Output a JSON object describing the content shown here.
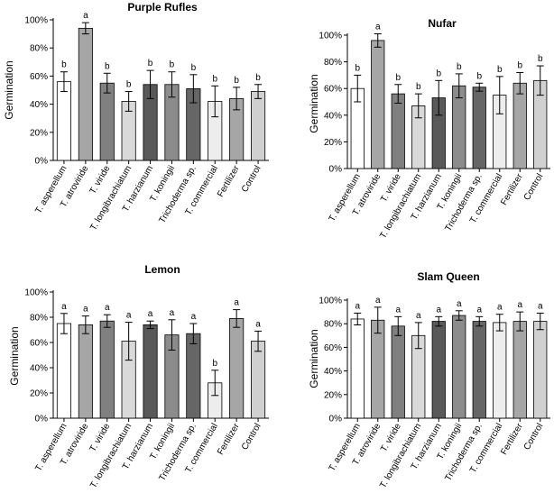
{
  "chart_data": [
    {
      "type": "bar",
      "title": "Purple Rufles",
      "ylabel": "Germination",
      "xlabel": "",
      "ylim": [
        0,
        100
      ],
      "yticks": [
        "0%",
        "20%",
        "40%",
        "60%",
        "80%",
        "100%"
      ],
      "categories": [
        "T. asperellum",
        "T. atroviride",
        "T. viride",
        "T. longibrachiatum",
        "T. harzianum",
        "T. koningii",
        "Trichoderma sp.",
        "T. commercial",
        "Fertilizer",
        "Control"
      ],
      "values": [
        56,
        94,
        55,
        42,
        54,
        54,
        51,
        42,
        44,
        49
      ],
      "errors": [
        7,
        4,
        7,
        7,
        10,
        9,
        10,
        11,
        8,
        5
      ],
      "letters": [
        "b",
        "a",
        "b",
        "b",
        "b",
        "b",
        "b",
        "b",
        "b",
        "b"
      ]
    },
    {
      "type": "bar",
      "title": "Nufar",
      "ylabel": "Germination",
      "xlabel": "",
      "ylim": [
        0,
        100
      ],
      "yticks": [
        "0%",
        "20%",
        "40%",
        "60%",
        "80%",
        "100%"
      ],
      "categories": [
        "T. asperellum",
        "T. atroviride",
        "T. viride",
        "T. longibrachiatum",
        "T. harzianum",
        "T. koningii",
        "Trichoderma sp.",
        "T. commercial",
        "Fertilizer",
        "Control"
      ],
      "values": [
        60,
        96,
        56,
        47,
        53,
        62,
        61,
        55,
        64,
        66
      ],
      "errors": [
        10,
        5,
        7,
        9,
        13,
        9,
        3,
        14,
        8,
        11
      ],
      "letters": [
        "b",
        "a",
        "b",
        "b",
        "b",
        "b",
        "b",
        "b",
        "b",
        "b"
      ]
    },
    {
      "type": "bar",
      "title": "Lemon",
      "ylabel": "Germination",
      "xlabel": "",
      "ylim": [
        0,
        100
      ],
      "yticks": [
        "0%",
        "20%",
        "40%",
        "60%",
        "80%",
        "100%"
      ],
      "categories": [
        "T. asperellum",
        "T. atroviride",
        "T. viride",
        "T. longibrachiatum",
        "T. harzianum",
        "T. koningii",
        "Trichoderma sp.",
        "T. commercial",
        "Fertilizer",
        "Control"
      ],
      "values": [
        75,
        74,
        77,
        61,
        74,
        66,
        67,
        28,
        79,
        61
      ],
      "errors": [
        8,
        7,
        5,
        15,
        3,
        12,
        8,
        10,
        7,
        8
      ],
      "letters": [
        "a",
        "a",
        "a",
        "a",
        "a",
        "a",
        "a",
        "b",
        "a",
        "a"
      ]
    },
    {
      "type": "bar",
      "title": "Slam Queen",
      "ylabel": "Germination",
      "xlabel": "",
      "ylim": [
        0,
        100
      ],
      "yticks": [
        "0%",
        "20%",
        "40%",
        "60%",
        "80%",
        "100%"
      ],
      "categories": [
        "T. asperellum",
        "T. atroviride",
        "T. viride",
        "T. longibrachiatum",
        "T. harzianum",
        "T. koningii",
        "Trichoderma sp.",
        "T. commercial",
        "Fertilizer",
        "Control"
      ],
      "values": [
        84,
        83,
        78,
        70,
        82,
        87,
        82,
        81,
        82,
        82
      ],
      "errors": [
        5,
        11,
        8,
        11,
        4,
        4,
        4,
        7,
        8,
        7
      ],
      "letters": [
        "a",
        "a",
        "a",
        "a",
        "a",
        "a",
        "a",
        "a",
        "a",
        "a"
      ]
    }
  ],
  "colors": {
    "bars": [
      "#ffffff",
      "#a6a6a6",
      "#808080",
      "#d9d9d9",
      "#595959",
      "#8c8c8c",
      "#666666",
      "#ededed",
      "#a6a6a6",
      "#d0d0d0"
    ],
    "axis": "#000000"
  }
}
